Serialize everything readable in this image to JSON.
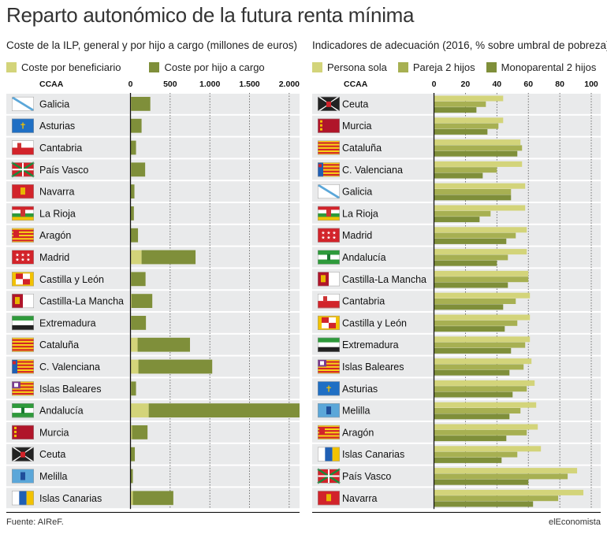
{
  "title": "Reparto autonómico de la futura renta mínima",
  "left": {
    "subtitle": "Coste de la ILP, general y por hijo a cargo (millones de euros)",
    "legend": [
      "Coste por beneficiario",
      "Coste por hijo a cargo"
    ]
  },
  "right": {
    "subtitle": "Indicadores de adecuación (2016, % sobre umbral de pobreza)",
    "legend": [
      "Persona sola",
      "Pareja 2 hijos",
      "Monoparental 2 hijos"
    ]
  },
  "colors": {
    "light": "#d3d47a",
    "mid": "#a7b052",
    "dark": "#7f8f3a",
    "rowBg": "#e9eaeb"
  },
  "footer": {
    "source": "Fuente: AIReF.",
    "brand": "elEconomista"
  },
  "chart_data": [
    {
      "type": "bar",
      "stacked": true,
      "orientation": "horizontal",
      "category_header": "CCAA",
      "categories": [
        "Galicia",
        "Asturias",
        "Cantabria",
        "País Vasco",
        "Navarra",
        "La Rioja",
        "Aragón",
        "Madrid",
        "Castilla y León",
        "Castilla-La Mancha",
        "Extremadura",
        "Cataluña",
        "C. Valenciana",
        "Islas Baleares",
        "Andalucía",
        "Murcia",
        "Ceuta",
        "Melilla",
        "Islas Canarias"
      ],
      "series": [
        {
          "name": "Coste por beneficiario",
          "values": [
            10,
            5,
            5,
            10,
            5,
            3,
            5,
            140,
            10,
            15,
            10,
            90,
            100,
            10,
            230,
            20,
            5,
            5,
            30
          ]
        },
        {
          "name": "Coste por hijo a cargo",
          "values": [
            240,
            135,
            65,
            175,
            45,
            40,
            90,
            680,
            180,
            260,
            185,
            660,
            930,
            60,
            1960,
            195,
            50,
            25,
            510
          ]
        }
      ],
      "xticks": [
        "0",
        "500",
        "1.000",
        "1.500",
        "2.000"
      ],
      "xlim": [
        0,
        2200
      ]
    },
    {
      "type": "bar",
      "orientation": "horizontal",
      "category_header": "CCAA",
      "categories": [
        "Ceuta",
        "Murcia",
        "Cataluña",
        "C. Valenciana",
        "Galicia",
        "La Rioja",
        "Madrid",
        "Andalucía",
        "Castilla-La Mancha",
        "Cantabria",
        "Castilla y León",
        "Extremadura",
        "Islas Baleares",
        "Asturias",
        "Melilla",
        "Aragón",
        "Islas Canarias",
        "País Vasco",
        "Navarra"
      ],
      "series": [
        {
          "name": "Persona sola",
          "values": [
            44,
            44,
            55,
            56,
            58,
            58,
            59,
            59,
            60,
            61,
            61,
            61,
            62,
            64,
            65,
            66,
            68,
            91,
            95
          ]
        },
        {
          "name": "Pareja 2 hijos",
          "values": [
            33,
            41,
            56,
            40,
            49,
            36,
            52,
            47,
            60,
            52,
            53,
            58,
            57,
            59,
            55,
            59,
            53,
            85,
            79
          ]
        },
        {
          "name": "Monoparental 2 hijos",
          "values": [
            27,
            34,
            53,
            31,
            49,
            29,
            46,
            40,
            47,
            44,
            45,
            49,
            48,
            50,
            48,
            46,
            43,
            60,
            63
          ]
        }
      ],
      "xticks": [
        "0",
        "20",
        "40",
        "60",
        "80",
        "100"
      ],
      "xlim": [
        0,
        105
      ]
    }
  ]
}
